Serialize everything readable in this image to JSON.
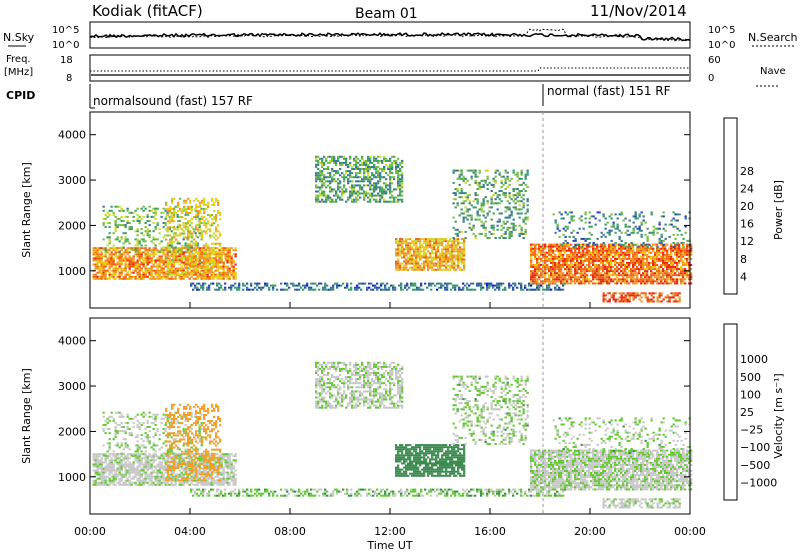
{
  "header": {
    "station": "Kodiak (fitACF)",
    "beam": "Beam 01",
    "date": "11/Nov/2014"
  },
  "noise_panel": {
    "left_label": "N.Sky",
    "right_label": "N.Search",
    "left_ticks": [
      "10^5",
      "10^0"
    ],
    "right_ticks": [
      "10^5",
      "10^0"
    ]
  },
  "freq_panel": {
    "left_label_1": "Freq.",
    "left_label_2": "[MHz]",
    "right_label": "Nave",
    "left_ticks": [
      "18",
      "8"
    ],
    "right_ticks": [
      "60",
      "0"
    ]
  },
  "cpid": {
    "label": "CPID",
    "segments": [
      {
        "text": "normalsound (fast) 157 RF",
        "start_hour": 0,
        "end_hour": 18
      },
      {
        "text": "normal (fast) 151 RF",
        "start_hour": 18,
        "end_hour": 24
      }
    ]
  },
  "x_axis": {
    "label": "Time UT",
    "ticks": [
      "00:00",
      "04:00",
      "08:00",
      "12:00",
      "16:00",
      "20:00",
      "00:00"
    ]
  },
  "power_panel": {
    "ylabel": "Slant Range [km]",
    "yticks": [
      "1000",
      "2000",
      "3000",
      "4000"
    ],
    "colorbar_label": "Power [dB]",
    "colorbar_ticks": [
      "4",
      "8",
      "12",
      "16",
      "20",
      "24",
      "28"
    ],
    "colors": [
      "#1414e6",
      "#2846b4",
      "#3c7896",
      "#3ca064",
      "#78be46",
      "#c8dc28",
      "#f0c814",
      "#f09628",
      "#f06414",
      "#e62814"
    ]
  },
  "velocity_panel": {
    "ylabel": "Slant Range [km]",
    "yticks": [
      "1000",
      "2000",
      "3000",
      "4000"
    ],
    "colorbar_label": "Velocity [m s⁻¹]",
    "colorbar_ticks": [
      "1000",
      "500",
      "100",
      "25",
      "−25",
      "−100",
      "−500",
      "−1000"
    ],
    "colors": [
      "#1e3cc8",
      "#28648c",
      "#3c8c50",
      "#64c832",
      "#c8c8c8",
      "#c8c8c8",
      "#f0a028",
      "#f07814",
      "#f04614",
      "#e61414"
    ]
  },
  "chart_data": {
    "type": "heatmap",
    "x_range_hours": [
      0,
      24
    ],
    "y_range_km": [
      180,
      4500
    ],
    "gate_start_km": 180,
    "gate_step_km": 45,
    "scatter_regions": [
      {
        "name": "evening near range",
        "t0": 0.1,
        "t1": 5.8,
        "r0": 800,
        "r1": 1500,
        "density": 0.75,
        "power": 24,
        "velocity": -20
      },
      {
        "name": "evening mid range",
        "t0": 0.5,
        "t1": 4.5,
        "r0": 1400,
        "r1": 2400,
        "density": 0.25,
        "power": 14,
        "velocity": 20
      },
      {
        "name": "sunset tongue",
        "t0": 3.0,
        "t1": 5.2,
        "r0": 900,
        "r1": 2600,
        "density": 0.35,
        "power": 20,
        "velocity": -300
      },
      {
        "name": "E region band",
        "t0": 4.0,
        "t1": 19.0,
        "r0": 560,
        "r1": 700,
        "density": 0.5,
        "power": 8,
        "velocity": 50
      },
      {
        "name": "midnight arc",
        "t0": 9.0,
        "t1": 12.5,
        "r0": 2500,
        "r1": 3500,
        "density": 0.55,
        "power": 12,
        "velocity": 0
      },
      {
        "name": "midnight patch",
        "t0": 12.2,
        "t1": 15.0,
        "r0": 1000,
        "r1": 1700,
        "density": 0.8,
        "power": 22,
        "velocity": 200
      },
      {
        "name": "morning streaks",
        "t0": 14.5,
        "t1": 17.5,
        "r0": 1700,
        "r1": 3200,
        "density": 0.3,
        "power": 12,
        "velocity": 25
      },
      {
        "name": "dawn band",
        "t0": 17.6,
        "t1": 24.0,
        "r0": 700,
        "r1": 1600,
        "density": 0.8,
        "power": 26,
        "velocity": 0
      },
      {
        "name": "dawn streaks",
        "t0": 18.5,
        "t1": 24.0,
        "r0": 1500,
        "r1": 2300,
        "density": 0.2,
        "power": 10,
        "velocity": 25
      },
      {
        "name": "ground scatter low",
        "t0": 20.5,
        "t1": 23.6,
        "r0": 300,
        "r1": 500,
        "density": 0.5,
        "power": 28,
        "velocity": -20
      }
    ]
  }
}
